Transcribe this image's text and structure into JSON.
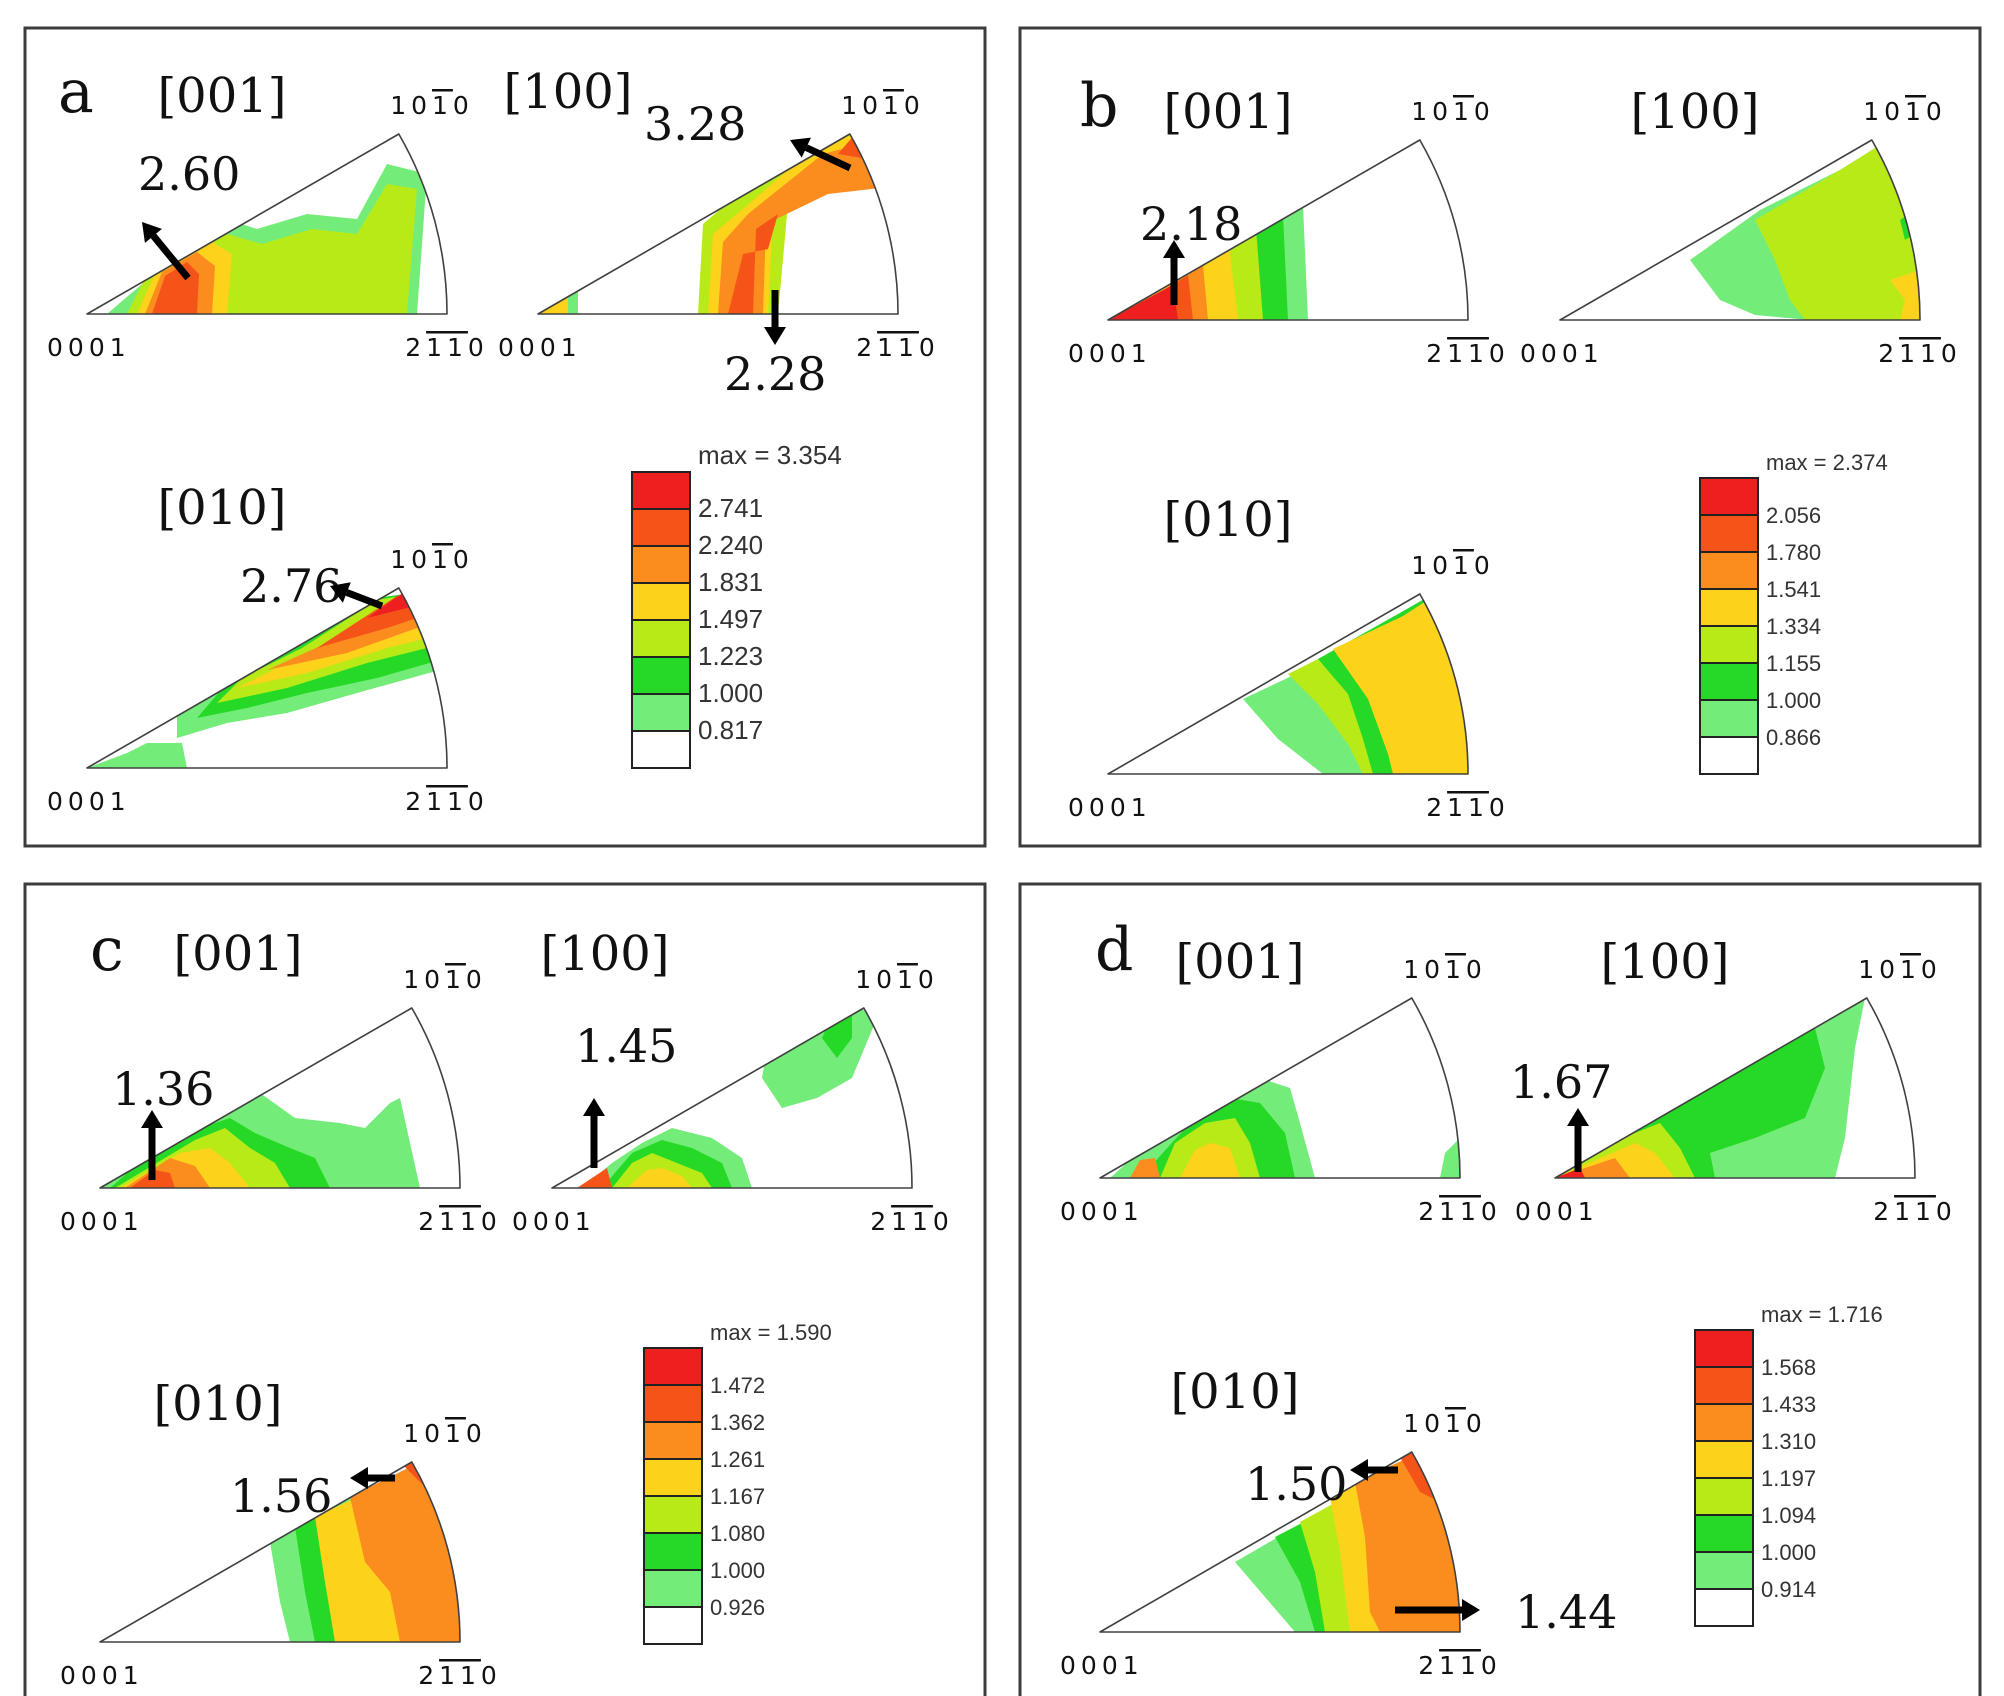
{
  "figure": {
    "corner_labels": {
      "bottom_left": "0001",
      "bottom_right": "2110",
      "top": "1010"
    },
    "panels": [
      {
        "letter": "a",
        "ipfs": [
          {
            "direction": "[001]",
            "peaks": [
              {
                "value": "2.60"
              }
            ]
          },
          {
            "direction": "[100]",
            "peaks": [
              {
                "value": "3.28"
              },
              {
                "value": "2.28"
              }
            ]
          },
          {
            "direction": "[010]",
            "peaks": [
              {
                "value": "2.76"
              }
            ]
          }
        ],
        "legend": {
          "max_label": "max = 3.354",
          "levels": [
            "2.741",
            "2.240",
            "1.831",
            "1.497",
            "1.223",
            "1.000",
            "0.817"
          ]
        }
      },
      {
        "letter": "b",
        "ipfs": [
          {
            "direction": "[001]",
            "peaks": [
              {
                "value": "2.18"
              }
            ]
          },
          {
            "direction": "[100]",
            "peaks": []
          },
          {
            "direction": "[010]",
            "peaks": []
          }
        ],
        "legend": {
          "max_label": "max = 2.374",
          "levels": [
            "2.056",
            "1.780",
            "1.541",
            "1.334",
            "1.155",
            "1.000",
            "0.866"
          ]
        }
      },
      {
        "letter": "c",
        "ipfs": [
          {
            "direction": "[001]",
            "peaks": [
              {
                "value": "1.36"
              }
            ]
          },
          {
            "direction": "[100]",
            "peaks": [
              {
                "value": "1.45"
              }
            ]
          },
          {
            "direction": "[010]",
            "peaks": [
              {
                "value": "1.56"
              }
            ]
          }
        ],
        "legend": {
          "max_label": "max = 1.590",
          "levels": [
            "1.472",
            "1.362",
            "1.261",
            "1.167",
            "1.080",
            "1.000",
            "0.926"
          ]
        }
      },
      {
        "letter": "d",
        "ipfs": [
          {
            "direction": "[001]",
            "peaks": []
          },
          {
            "direction": "[100]",
            "peaks": [
              {
                "value": "1.67"
              }
            ]
          },
          {
            "direction": "[010]",
            "peaks": [
              {
                "value": "1.50"
              },
              {
                "value": "1.44"
              }
            ]
          }
        ],
        "legend": {
          "max_label": "max = 1.716",
          "levels": [
            "1.568",
            "1.433",
            "1.310",
            "1.197",
            "1.094",
            "1.000",
            "0.914"
          ]
        }
      }
    ],
    "palette": [
      "#ee1f1f",
      "#f55418",
      "#fb8c1e",
      "#fcd21b",
      "#b8ea17",
      "#27d927",
      "#74ec7a",
      "#ffffff"
    ]
  }
}
